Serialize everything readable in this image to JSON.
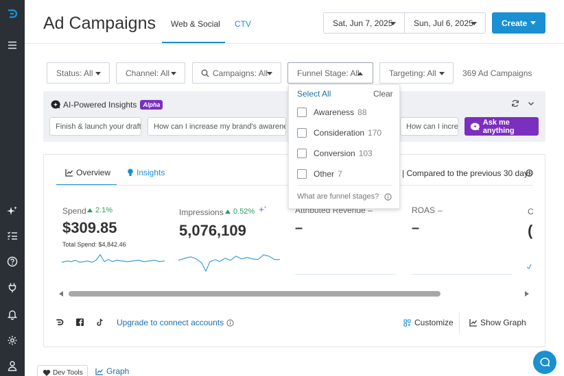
{
  "header": {
    "title": "Ad Campaigns",
    "tabs": [
      {
        "label": "Web & Social",
        "active": true
      },
      {
        "label": "CTV",
        "active": false
      }
    ],
    "date_start": "Sat, Jun 7, 2025",
    "date_end": "Sun, Jul 6, 2025",
    "create_label": "Create"
  },
  "filters": {
    "status": "Status: All",
    "channel": "Channel: All",
    "campaigns": "Campaigns: All",
    "funnel_stage": "Funnel Stage: All",
    "targeting": "Targeting: All",
    "count": "369 Ad Campaigns"
  },
  "funnel_dropdown": {
    "select_all": "Select All",
    "clear": "Clear",
    "items": [
      {
        "label": "Awareness",
        "count": "88"
      },
      {
        "label": "Consideration",
        "count": "170"
      },
      {
        "label": "Conversion",
        "count": "103"
      },
      {
        "label": "Other",
        "count": "7"
      }
    ],
    "help": "What are funnel stages?"
  },
  "ai_insights": {
    "title": "AI-Powered Insights",
    "badge": "Alpha",
    "chips": [
      "Finish & launch your drafts",
      "How can I increase my brand's awareness?",
      "How can I increase"
    ],
    "ask_label": "Ask me anything"
  },
  "overview": {
    "tabs": [
      {
        "label": "Overview",
        "active": true
      },
      {
        "label": "Insights",
        "active": false
      }
    ],
    "compare": "| Compared to the previous 30 days",
    "metrics": {
      "spend": {
        "label": "Spend",
        "change": "2.1%",
        "value": "$309.85",
        "sub": "Total Spend: $4,842.46"
      },
      "impressions": {
        "label": "Impressions",
        "change": "0.52%",
        "value": "5,076,109"
      },
      "attributed_revenue": {
        "label": "Attributed Revenue",
        "change": "–",
        "value": "–"
      },
      "roas": {
        "label": "ROAS",
        "change": "–",
        "value": "–"
      },
      "next": {
        "label": "C",
        "value": "("
      }
    },
    "upgrade_label": "Upgrade to connect accounts",
    "customize_label": "Customize",
    "show_graph_label": "Show Graph"
  },
  "bottom": {
    "devtools_label": "Dev Tools",
    "graph_label": "Graph"
  },
  "icons": {
    "rail": [
      "logo-icon",
      "menu-icon",
      "sparkle-icon",
      "list-icon",
      "help-icon",
      "plug-icon",
      "bell-icon",
      "gear-icon",
      "user-icon"
    ]
  },
  "colors": {
    "accent": "#1a8fd1",
    "rail": "#2b2f36",
    "ai_purple": "#7b2fbf",
    "positive": "#2a9d5c"
  }
}
